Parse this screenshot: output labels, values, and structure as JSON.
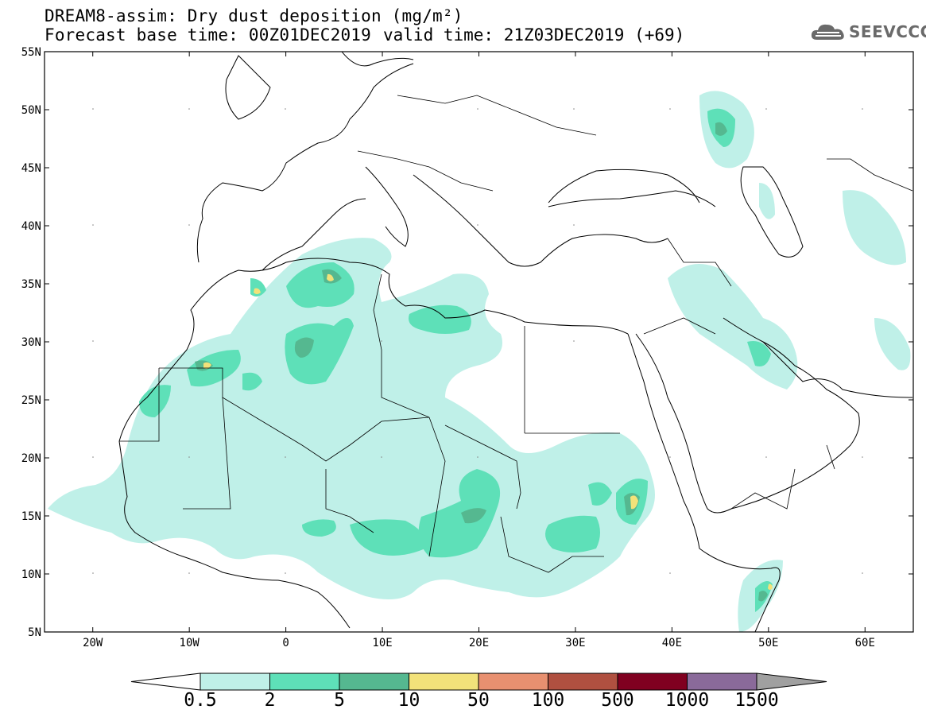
{
  "header": {
    "title": "DREAM8-assim: Dry dust deposition (mg/m²)",
    "base_time": "Forecast base time: 00Z01DEC2019",
    "valid_time": "valid time: 21Z03DEC2019 (+69)"
  },
  "logo": {
    "text": "SEEVCCC",
    "icon": "cloud-icon"
  },
  "map": {
    "lon_ticks": [
      "20W",
      "10W",
      "0",
      "10E",
      "20E",
      "30E",
      "40E",
      "50E",
      "60E"
    ],
    "lat_ticks": [
      "55N",
      "50N",
      "45N",
      "40N",
      "35N",
      "30N",
      "25N",
      "20N",
      "15N",
      "10N",
      "5N"
    ],
    "lon_range": [
      -25,
      65
    ],
    "lat_range": [
      5,
      55
    ]
  },
  "colorbar": {
    "labels": [
      "0.5",
      "2",
      "5",
      "10",
      "50",
      "100",
      "500",
      "1000",
      "1500"
    ],
    "colors": [
      "#bff0e8",
      "#5ee0b8",
      "#55b890",
      "#f2e27a",
      "#e89070",
      "#b05040",
      "#800020",
      "#8a6a9a",
      "#a0a0a0"
    ]
  }
}
